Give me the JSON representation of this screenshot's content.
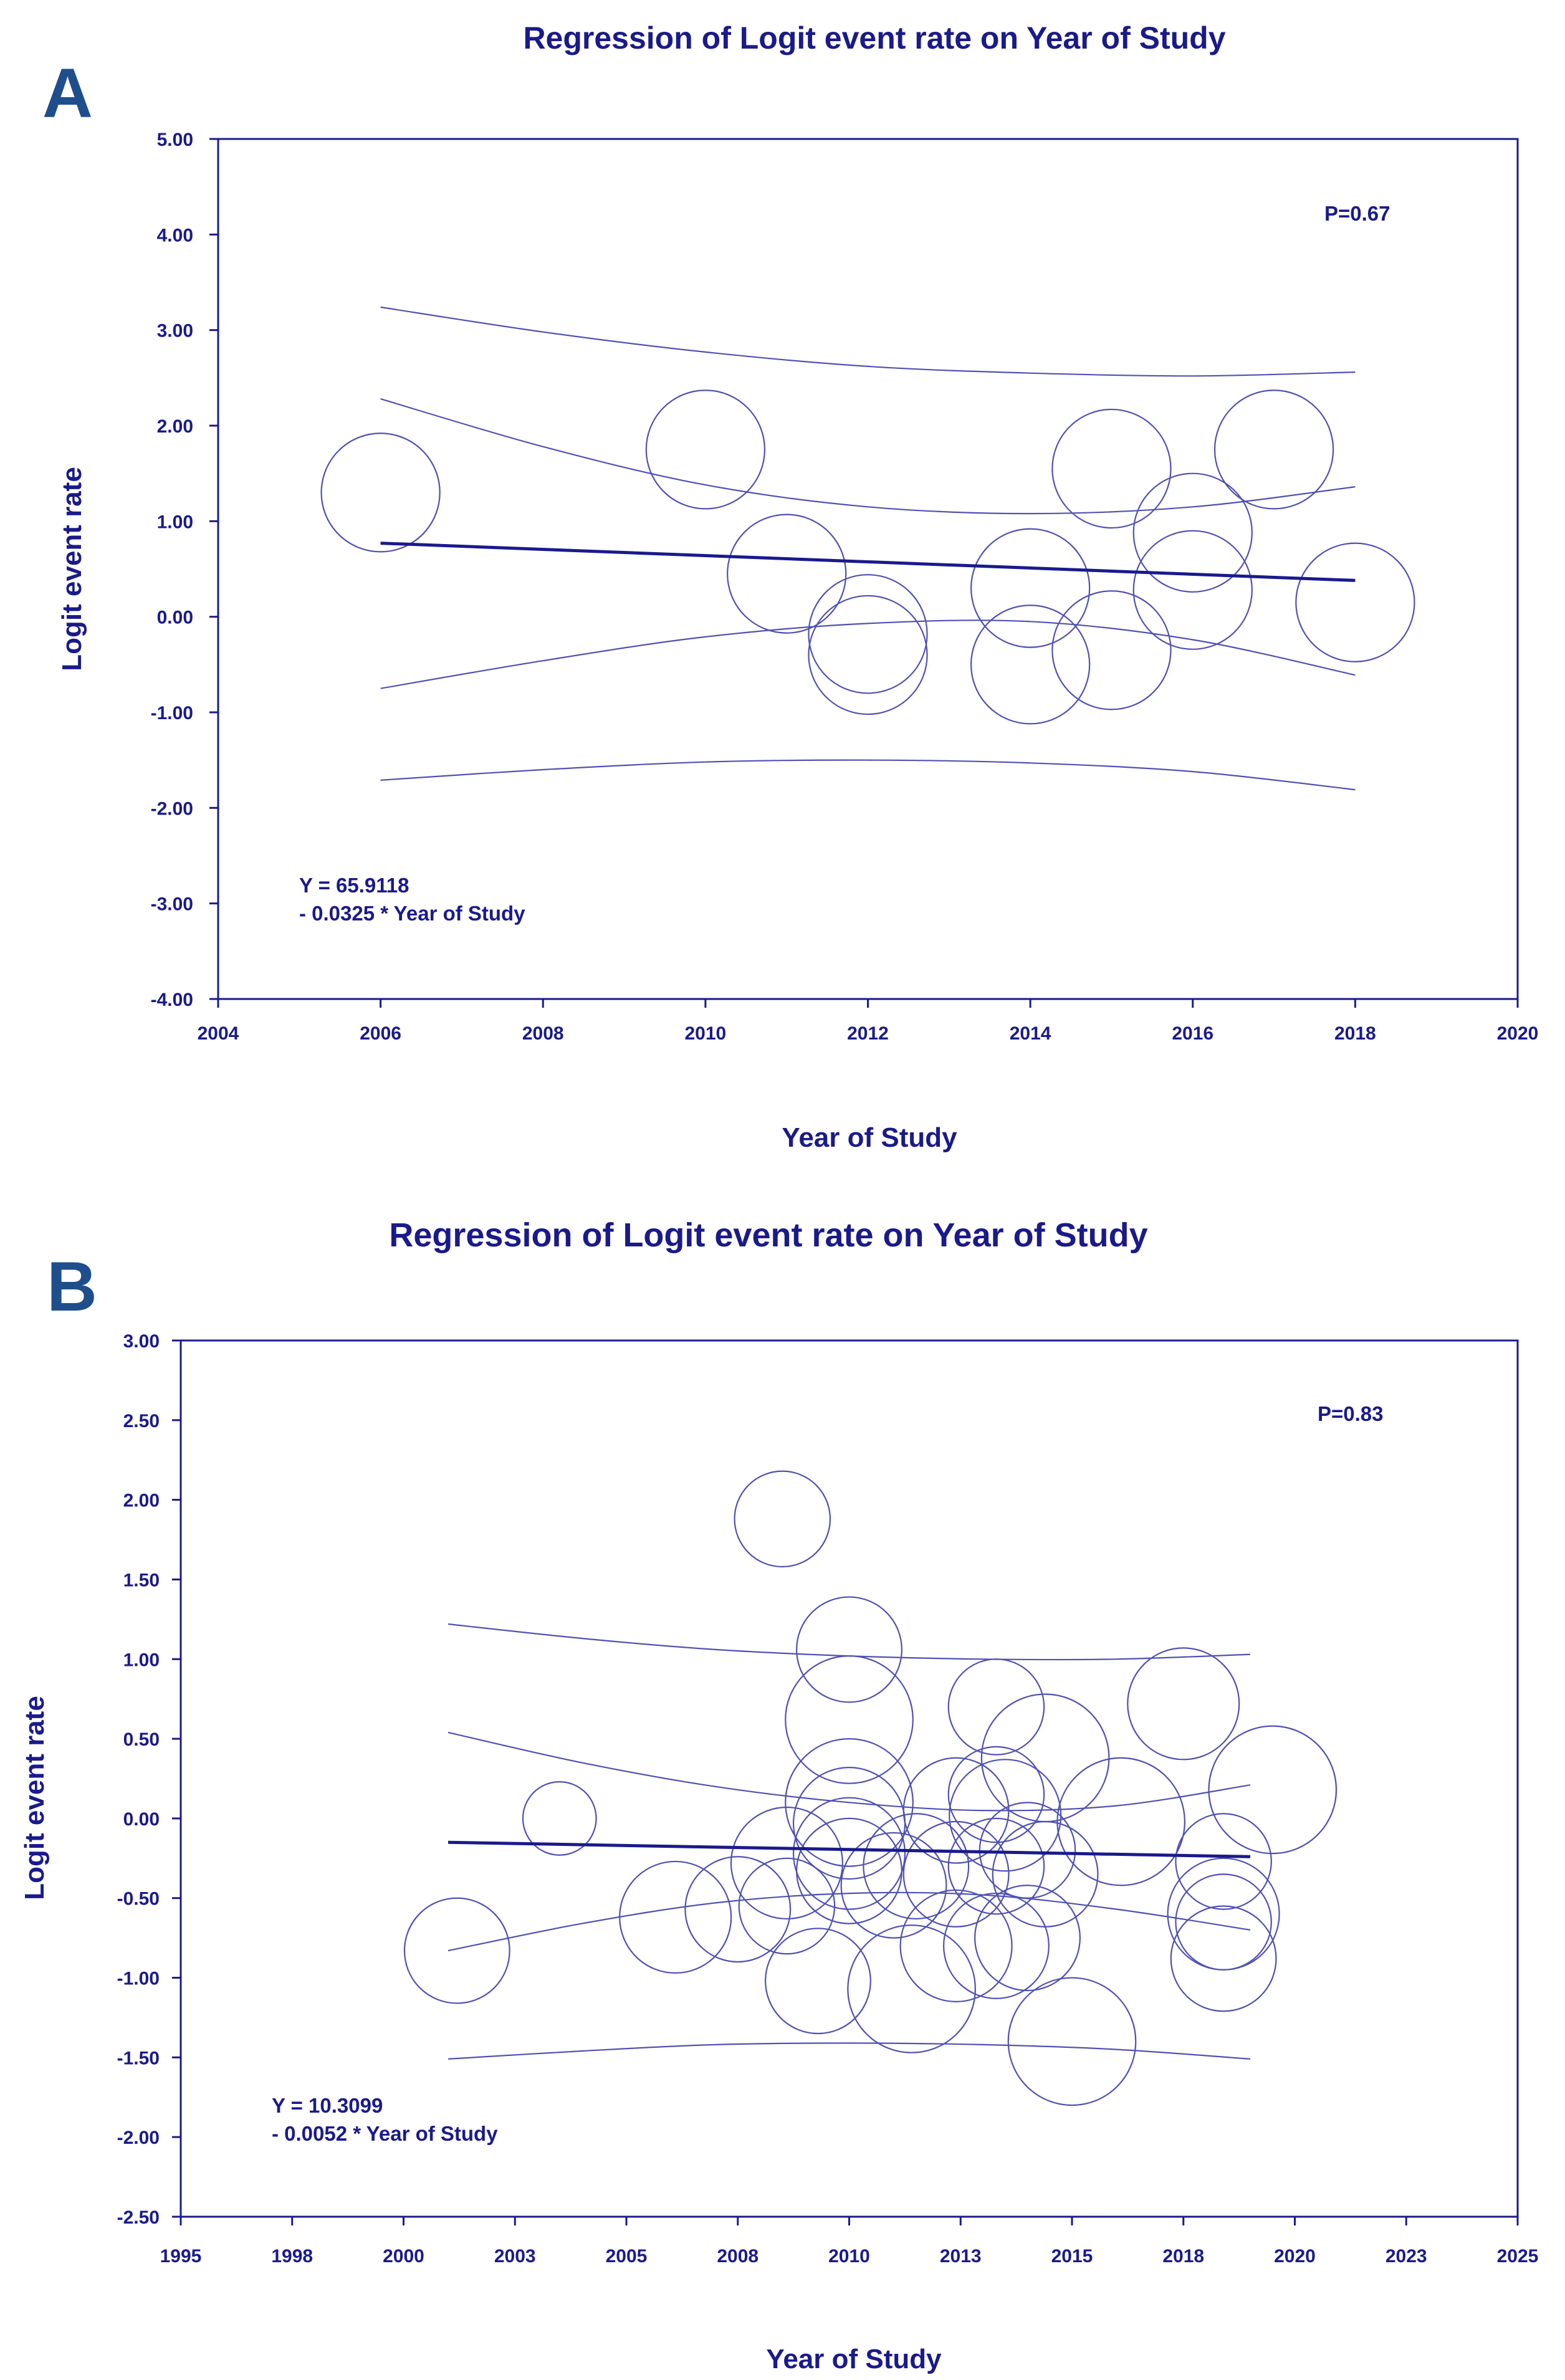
{
  "chart_data": [
    {
      "panel": "A",
      "type": "scatter",
      "title": "Regression of Logit event rate on Year of Study",
      "xlabel": "Year of Study",
      "ylabel": "Logit event rate",
      "xlim": [
        2004,
        2020
      ],
      "ylim": [
        -4,
        5
      ],
      "xticks": [
        2004,
        2006,
        2008,
        2010,
        2012,
        2014,
        2016,
        2018,
        2020
      ],
      "yticks": [
        5,
        4,
        3,
        2,
        1,
        0,
        -1,
        -2,
        -3,
        -4
      ],
      "ytick_labels": [
        "5.00",
        "4.00",
        "3.00",
        "2.00",
        "1.00",
        "0.00",
        "-1.00",
        "-2.00",
        "-3.00",
        "-4.00"
      ],
      "grid": false,
      "pvalue": "P=0.67",
      "equation": [
        "Y = 65.9118",
        "- 0.0325 * Year of Study"
      ],
      "regression": {
        "x": [
          2006,
          2018
        ],
        "y": [
          0.77,
          0.38
        ]
      },
      "ci_inner_upper": {
        "x": [
          2006,
          2008,
          2010,
          2012,
          2014,
          2016,
          2018
        ],
        "y": [
          2.28,
          1.78,
          1.38,
          1.15,
          1.08,
          1.15,
          1.36
        ]
      },
      "ci_inner_lower": {
        "x": [
          2006,
          2008,
          2010,
          2012,
          2014,
          2016,
          2018
        ],
        "y": [
          -0.75,
          -0.46,
          -0.21,
          -0.07,
          -0.05,
          -0.24,
          -0.61
        ]
      },
      "ci_outer_upper": {
        "x": [
          2006,
          2008,
          2010,
          2012,
          2014,
          2016,
          2018
        ],
        "y": [
          3.24,
          2.98,
          2.77,
          2.62,
          2.55,
          2.52,
          2.56
        ]
      },
      "ci_outer_lower": {
        "x": [
          2006,
          2008,
          2010,
          2012,
          2014,
          2016,
          2018
        ],
        "y": [
          -1.71,
          -1.6,
          -1.52,
          -1.5,
          -1.53,
          -1.62,
          -1.81
        ]
      },
      "points": [
        {
          "x": 2006,
          "y": 1.3,
          "size": 0.62
        },
        {
          "x": 2010,
          "y": 1.75,
          "size": 0.62
        },
        {
          "x": 2011,
          "y": 0.45,
          "size": 0.62
        },
        {
          "x": 2012,
          "y": -0.18,
          "size": 0.62
        },
        {
          "x": 2012,
          "y": -0.4,
          "size": 0.62
        },
        {
          "x": 2014,
          "y": 0.3,
          "size": 0.62
        },
        {
          "x": 2014,
          "y": -0.5,
          "size": 0.62
        },
        {
          "x": 2015,
          "y": 1.55,
          "size": 0.62
        },
        {
          "x": 2015,
          "y": -0.35,
          "size": 0.62
        },
        {
          "x": 2016,
          "y": 0.88,
          "size": 0.62
        },
        {
          "x": 2016,
          "y": 0.28,
          "size": 0.62
        },
        {
          "x": 2017,
          "y": 1.75,
          "size": 0.62
        },
        {
          "x": 2018,
          "y": 0.15,
          "size": 0.62
        }
      ]
    },
    {
      "panel": "B",
      "type": "scatter",
      "title": "Regression of Logit event rate on Year of Study",
      "xlabel": "Year of Study",
      "ylabel": "Logit event rate",
      "xlim": [
        1995,
        2025
      ],
      "ylim": [
        -2.5,
        3
      ],
      "xticks": [
        1995,
        1997.5,
        2000,
        2002.5,
        2005,
        2007.5,
        2010,
        2012.5,
        2015,
        2017.5,
        2020,
        2022.5,
        2025
      ],
      "xtick_labels": [
        "1995",
        "1998",
        "2000",
        "2003",
        "2005",
        "2008",
        "2010",
        "2013",
        "2015",
        "2018",
        "2020",
        "2023",
        "2025"
      ],
      "yticks": [
        3,
        2.5,
        2,
        1.5,
        1,
        0.5,
        0,
        -0.5,
        -1,
        -1.5,
        -2,
        -2.5
      ],
      "ytick_labels": [
        "3.00",
        "2.50",
        "2.00",
        "1.50",
        "1.00",
        "0.50",
        "0.00",
        "-0.50",
        "-1.00",
        "-1.50",
        "-2.00",
        "-2.50"
      ],
      "grid": false,
      "pvalue": "P=0.83",
      "equation": [
        "Y = 10.3099",
        "- 0.0052 * Year of Study"
      ],
      "regression": {
        "x": [
          2001,
          2019
        ],
        "y": [
          -0.15,
          -0.24
        ]
      },
      "ci_inner_upper": {
        "x": [
          2001,
          2004,
          2007,
          2010,
          2013,
          2016,
          2019
        ],
        "y": [
          0.54,
          0.35,
          0.2,
          0.1,
          0.05,
          0.08,
          0.21
        ]
      },
      "ci_inner_lower": {
        "x": [
          2001,
          2004,
          2007,
          2010,
          2013,
          2016,
          2019
        ],
        "y": [
          -0.83,
          -0.66,
          -0.53,
          -0.47,
          -0.48,
          -0.57,
          -0.7
        ]
      },
      "ci_outer_upper": {
        "x": [
          2001,
          2004,
          2007,
          2010,
          2013,
          2016,
          2019
        ],
        "y": [
          1.22,
          1.13,
          1.06,
          1.02,
          1,
          1,
          1.03
        ]
      },
      "ci_outer_lower": {
        "x": [
          2001,
          2004,
          2007,
          2010,
          2013,
          2016,
          2019
        ],
        "y": [
          -1.51,
          -1.46,
          -1.42,
          -1.41,
          -1.42,
          -1.45,
          -1.51
        ]
      },
      "points": [
        {
          "x": 2001.2,
          "y": -0.83,
          "size": 0.33
        },
        {
          "x": 2003.5,
          "y": 0.0,
          "size": 0.23
        },
        {
          "x": 2006.1,
          "y": -0.62,
          "size": 0.35
        },
        {
          "x": 2007.5,
          "y": -0.57,
          "size": 0.33
        },
        {
          "x": 2008.5,
          "y": 1.88,
          "size": 0.3
        },
        {
          "x": 2008.6,
          "y": -0.28,
          "size": 0.35
        },
        {
          "x": 2008.6,
          "y": -0.55,
          "size": 0.3
        },
        {
          "x": 2009.3,
          "y": -1.02,
          "size": 0.33
        },
        {
          "x": 2010,
          "y": 1.06,
          "size": 0.33
        },
        {
          "x": 2010,
          "y": 0.62,
          "size": 0.4
        },
        {
          "x": 2010,
          "y": 0.1,
          "size": 0.4
        },
        {
          "x": 2010,
          "y": -0.03,
          "size": 0.35
        },
        {
          "x": 2010,
          "y": -0.22,
          "size": 0.35
        },
        {
          "x": 2010,
          "y": -0.33,
          "size": 0.33
        },
        {
          "x": 2011,
          "y": -0.42,
          "size": 0.33
        },
        {
          "x": 2011.4,
          "y": -1.07,
          "size": 0.4
        },
        {
          "x": 2011.5,
          "y": -0.3,
          "size": 0.33
        },
        {
          "x": 2012.4,
          "y": 0.05,
          "size": 0.33
        },
        {
          "x": 2012.4,
          "y": -0.8,
          "size": 0.35
        },
        {
          "x": 2012.4,
          "y": -0.35,
          "size": 0.33
        },
        {
          "x": 2013.3,
          "y": 0.7,
          "size": 0.3
        },
        {
          "x": 2013.3,
          "y": 0.15,
          "size": 0.3
        },
        {
          "x": 2013.3,
          "y": -0.3,
          "size": 0.3
        },
        {
          "x": 2013.3,
          "y": -0.8,
          "size": 0.33
        },
        {
          "x": 2013.5,
          "y": 0.02,
          "size": 0.35
        },
        {
          "x": 2014,
          "y": -0.75,
          "size": 0.33
        },
        {
          "x": 2014,
          "y": -0.2,
          "size": 0.3
        },
        {
          "x": 2014.4,
          "y": 0.38,
          "size": 0.4
        },
        {
          "x": 2014.4,
          "y": -0.35,
          "size": 0.33
        },
        {
          "x": 2015,
          "y": -1.4,
          "size": 0.4
        },
        {
          "x": 2016.1,
          "y": -0.02,
          "size": 0.4
        },
        {
          "x": 2017.5,
          "y": 0.72,
          "size": 0.35
        },
        {
          "x": 2018.4,
          "y": -0.27,
          "size": 0.3
        },
        {
          "x": 2018.4,
          "y": -0.6,
          "size": 0.35
        },
        {
          "x": 2018.4,
          "y": -0.65,
          "size": 0.3
        },
        {
          "x": 2018.4,
          "y": -0.88,
          "size": 0.33
        },
        {
          "x": 2019.5,
          "y": 0.18,
          "size": 0.4
        }
      ]
    }
  ]
}
